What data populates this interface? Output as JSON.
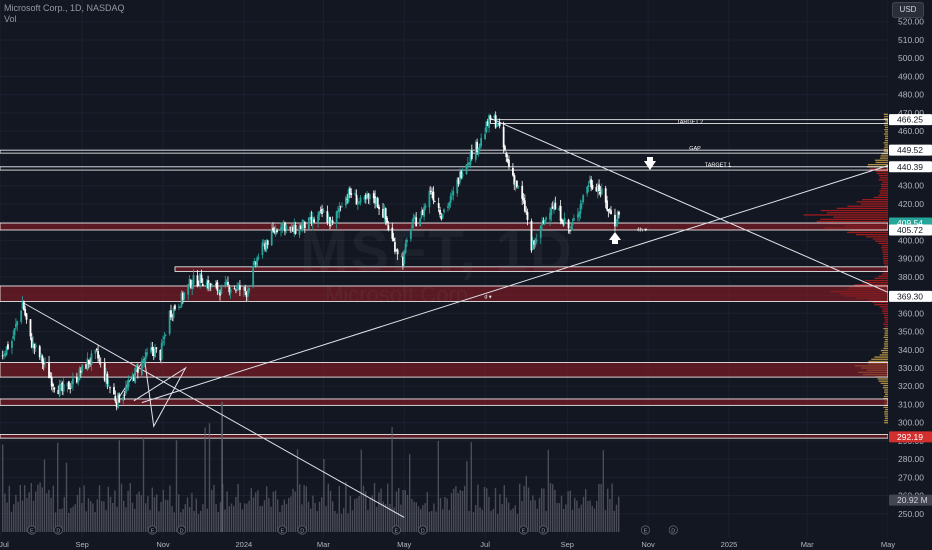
{
  "legend": {
    "symbol_line": "Microsoft Corp., 1D, NASDAQ",
    "vol_label": "Vol"
  },
  "currency_button": "USD",
  "watermark": {
    "main": "MSFT, 1D",
    "sub": "Microsoft Corp."
  },
  "colors": {
    "background": "#131722",
    "grid": "#1c2030",
    "up": "#26a69a",
    "down": "#ffffff",
    "zone_fill": "#7a1c24",
    "zone_border": "#ffffff",
    "volume": "#5d606b",
    "profile_red": "#b71c1c",
    "profile_gold": "#c9a24a",
    "current_price": "#26a69a",
    "volume_badge": "#434651",
    "red_badge": "#d32f2f"
  },
  "chart_data": {
    "type": "candlestick",
    "symbol": "MSFT",
    "interval": "1D",
    "exchange": "NASDAQ",
    "ylim": [
      240,
      530
    ],
    "y_ticks": [
      250,
      260,
      270,
      280,
      290,
      300,
      310,
      320,
      330,
      340,
      350,
      360,
      370,
      380,
      390,
      400,
      410,
      420,
      430,
      440,
      450,
      460,
      470,
      480,
      490,
      500,
      510,
      520
    ],
    "y_tick_labels": [
      "250.00",
      "260.00",
      "270.00",
      "280.00",
      "290.00",
      "300.00",
      "310.00",
      "320.00",
      "330.00",
      "340.00",
      "350.00",
      "360.00",
      "370.00",
      "380.00",
      "390.00",
      "400.00",
      "410.00",
      "420.00",
      "430.00",
      "440.00",
      "450.00",
      "460.00",
      "470.00",
      "480.00",
      "490.00",
      "500.00",
      "510.00",
      "520.00"
    ],
    "x_labels": [
      "Jul",
      "Sep",
      "Nov",
      "2024",
      "Mar",
      "May",
      "Jul",
      "Sep",
      "Nov",
      "2025",
      "Mar",
      "May"
    ],
    "price_path": [
      [
        "2023-07-03",
        338
      ],
      [
        "2023-07-10",
        345
      ],
      [
        "2023-07-18",
        366
      ],
      [
        "2023-07-24",
        345
      ],
      [
        "2023-08-01",
        335
      ],
      [
        "2023-08-10",
        322
      ],
      [
        "2023-08-17",
        317
      ],
      [
        "2023-08-25",
        322
      ],
      [
        "2023-09-05",
        333
      ],
      [
        "2023-09-12",
        337
      ],
      [
        "2023-09-20",
        322
      ],
      [
        "2023-09-27",
        312
      ],
      [
        "2023-10-05",
        319
      ],
      [
        "2023-10-13",
        330
      ],
      [
        "2023-10-24",
        340
      ],
      [
        "2023-10-30",
        337
      ],
      [
        "2023-11-06",
        360
      ],
      [
        "2023-11-15",
        368
      ],
      [
        "2023-11-22",
        377
      ],
      [
        "2023-11-30",
        379
      ],
      [
        "2023-12-08",
        374
      ],
      [
        "2023-12-15",
        373
      ],
      [
        "2023-12-22",
        375
      ],
      [
        "2024-01-03",
        372
      ],
      [
        "2024-01-12",
        392
      ],
      [
        "2024-01-19",
        400
      ],
      [
        "2024-01-29",
        410
      ],
      [
        "2024-02-06",
        405
      ],
      [
        "2024-02-14",
        408
      ],
      [
        "2024-02-22",
        410
      ],
      [
        "2024-03-01",
        415
      ],
      [
        "2024-03-08",
        408
      ],
      [
        "2024-03-15",
        422
      ],
      [
        "2024-03-22",
        426
      ],
      [
        "2024-03-29",
        420
      ],
      [
        "2024-04-08",
        424
      ],
      [
        "2024-04-16",
        414
      ],
      [
        "2024-04-22",
        400
      ],
      [
        "2024-04-30",
        389
      ],
      [
        "2024-05-06",
        408
      ],
      [
        "2024-05-14",
        414
      ],
      [
        "2024-05-21",
        428
      ],
      [
        "2024-05-29",
        415
      ],
      [
        "2024-06-06",
        423
      ],
      [
        "2024-06-14",
        440
      ],
      [
        "2024-06-21",
        448
      ],
      [
        "2024-06-28",
        455
      ],
      [
        "2024-07-05",
        467
      ],
      [
        "2024-07-10",
        465
      ],
      [
        "2024-07-17",
        445
      ],
      [
        "2024-07-25",
        430
      ],
      [
        "2024-08-01",
        415
      ],
      [
        "2024-08-05",
        395
      ],
      [
        "2024-08-12",
        406
      ],
      [
        "2024-08-20",
        420
      ],
      [
        "2024-08-27",
        414
      ],
      [
        "2024-09-03",
        405
      ],
      [
        "2024-09-10",
        418
      ],
      [
        "2024-09-17",
        432
      ],
      [
        "2024-09-24",
        430
      ],
      [
        "2024-09-30",
        420
      ],
      [
        "2024-10-07",
        410
      ],
      [
        "2024-10-10",
        416
      ]
    ],
    "horizontal_levels": [
      {
        "label": "TARGET 2",
        "price": 466.25,
        "price_label": "466.25"
      },
      {
        "label": "GAP",
        "price": 449.52,
        "price_label": "449.52"
      },
      {
        "label": "TARGET 1",
        "price": 440.39,
        "price_label": "440.39"
      },
      {
        "label": "4h ▾",
        "price": 407.6,
        "price_label": "409.54",
        "low_label": "405.72"
      },
      {
        "label": "d ▾",
        "price": 369.3,
        "price_label": "369.30"
      },
      {
        "label": "",
        "price": 292.19,
        "price_label": "292.19"
      }
    ],
    "zones": [
      {
        "low": 405.72,
        "high": 409.54
      },
      {
        "low": 383.0,
        "high": 385.5
      },
      {
        "low": 366.5,
        "high": 375.0
      },
      {
        "low": 325.0,
        "high": 333.0
      },
      {
        "low": 309.5,
        "high": 313.0
      },
      {
        "low": 291.5,
        "high": 293.5
      }
    ],
    "volume_label": "20.92 M",
    "trendlines": [
      {
        "from": [
          "2024-07-05",
          467
        ],
        "to": [
          "2025-05-31",
          362
        ]
      },
      {
        "from": [
          "2023-10-16",
          311
        ],
        "to": [
          "2025-05-31",
          448
        ]
      },
      {
        "from": [
          "2023-07-18",
          366
        ],
        "to": [
          "2024-05-01",
          248
        ]
      }
    ]
  }
}
